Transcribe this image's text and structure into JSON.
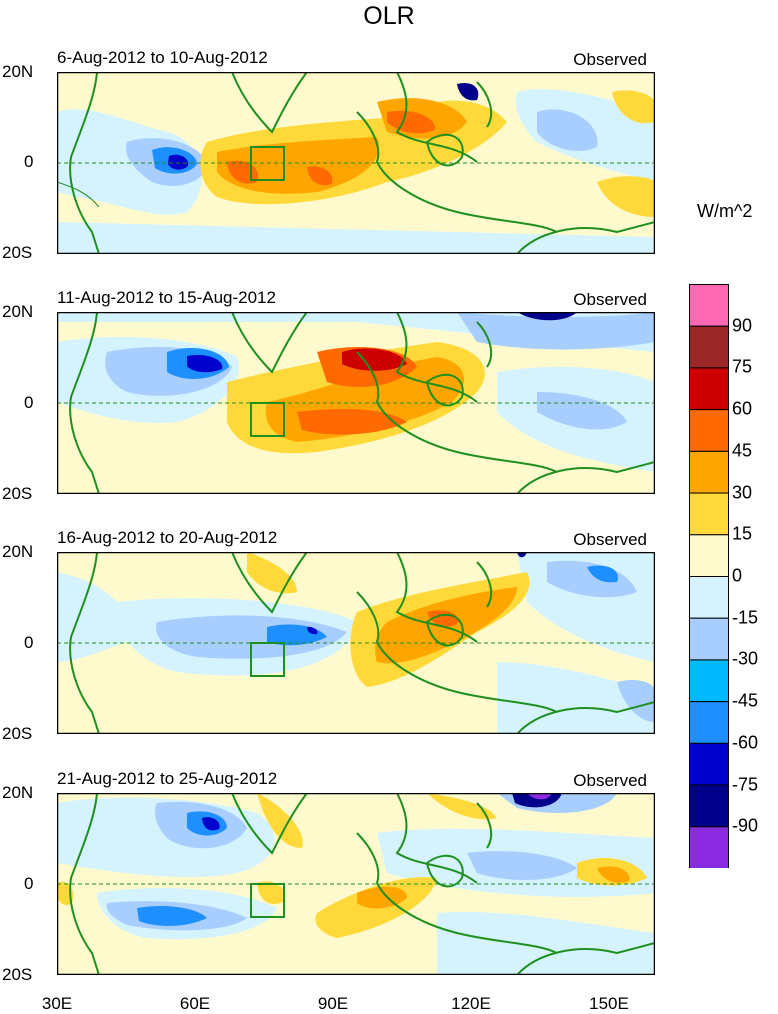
{
  "title": "OLR",
  "units": "W/m^2",
  "panels": [
    {
      "period": "6-Aug-2012 to 10-Aug-2012",
      "source": "Observed"
    },
    {
      "period": "11-Aug-2012 to 15-Aug-2012",
      "source": "Observed"
    },
    {
      "period": "16-Aug-2012 to 20-Aug-2012",
      "source": "Observed"
    },
    {
      "period": "21-Aug-2012 to 25-Aug-2012",
      "source": "Observed"
    }
  ],
  "lat_labels": [
    "20N",
    "0",
    "20S"
  ],
  "lon_labels": [
    "30E",
    "60E",
    "90E",
    "120E",
    "150E"
  ],
  "colorbar": {
    "levels": [
      "90",
      "75",
      "60",
      "45",
      "30",
      "15",
      "0",
      "-15",
      "-30",
      "-45",
      "-60",
      "-75",
      "-90"
    ],
    "colors": [
      "#ff69b4",
      "#9b2626",
      "#cc0000",
      "#ff6a00",
      "#ffa500",
      "#ffd93a",
      "#fffacd",
      "#d4f3ff",
      "#a8ceff",
      "#00b9ff",
      "#1e8fff",
      "#0000cd",
      "#00008b",
      "#8a2be2"
    ]
  },
  "colors": {
    "coast": "#1f8f1f",
    "box": "#1f8f1f",
    "neutral_background": "#fffacd"
  }
}
